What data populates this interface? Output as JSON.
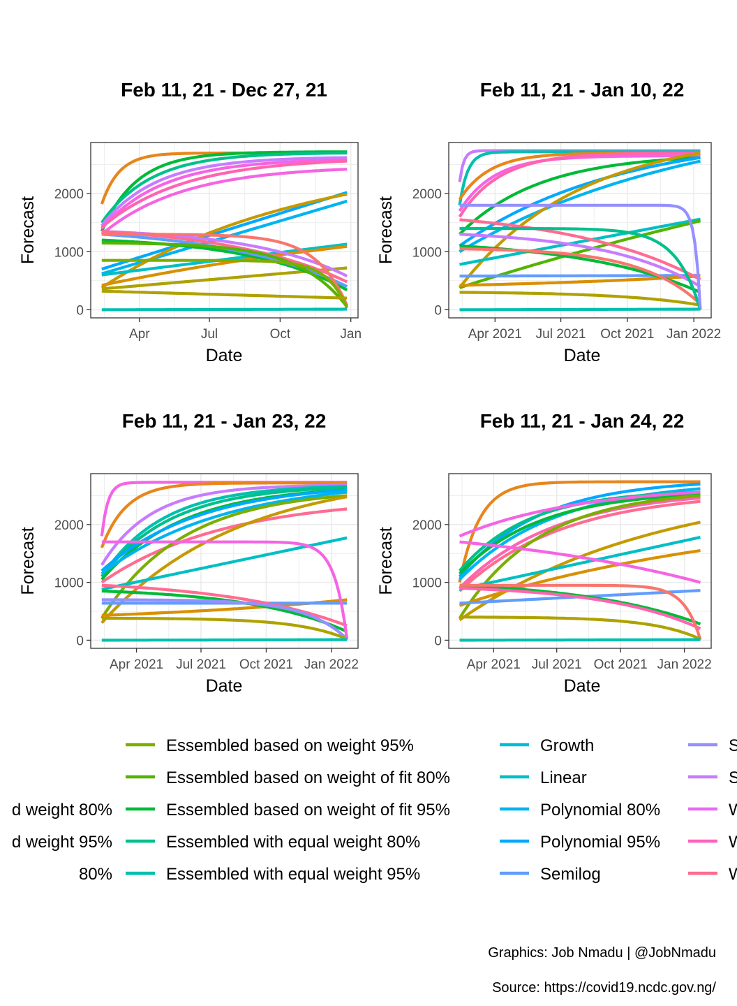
{
  "caption": {
    "graphics": "Graphics: Job Nmadu | @JobNmadu",
    "source": "Source: https://covid19.ncdc.gov.ng/"
  },
  "chart_data": [
    {
      "type": "line",
      "title": "Feb 11, 21 - Dec 27, 21",
      "xlabel": "Date",
      "ylabel": "Forecast",
      "x_range": [
        "2021-02-11",
        "2021-12-27"
      ],
      "x_ticks": [
        [
          "2021-04-01",
          "Apr"
        ],
        [
          "2021-07-01",
          "Jul"
        ],
        [
          "2021-10-01",
          "Oct"
        ],
        [
          "2022-01-01",
          "Jan"
        ]
      ],
      "y_ticks": [
        0,
        1000,
        2000
      ],
      "ylim": [
        -140,
        2880
      ],
      "grid": true,
      "series": [
        {
          "color": "#E7861B",
          "start": 1820,
          "end": 2700,
          "k": 14
        },
        {
          "color": "#00BA38",
          "start": 1350,
          "end": 2720,
          "k": 7
        },
        {
          "color": "#00C08B",
          "start": 1500,
          "end": 2700,
          "k": 5
        },
        {
          "color": "#C77CFF",
          "start": 1450,
          "end": 2620,
          "k": 4.5
        },
        {
          "color": "#F564E3",
          "start": 1400,
          "end": 2580,
          "k": 4
        },
        {
          "color": "#FF64B0",
          "start": 1420,
          "end": 2560,
          "k": 3
        },
        {
          "color": "#F564E3",
          "start": 1300,
          "end": 2420,
          "k": 3
        },
        {
          "color": "#00A9FF",
          "start": 700,
          "end": 2020,
          "k": 0
        },
        {
          "color": "#00B4F0",
          "start": 620,
          "end": 1870,
          "k": 0
        },
        {
          "color": "#C49A00",
          "start": 380,
          "end": 1990,
          "k": 1.2
        },
        {
          "color": "#00BFC4",
          "start": 600,
          "end": 1130,
          "k": 0
        },
        {
          "color": "#D89000",
          "start": 420,
          "end": 1090,
          "k": 0.6
        },
        {
          "color": "#AEA200",
          "start": 360,
          "end": 720,
          "k": 0
        },
        {
          "color": "#C77CFF",
          "start": 1350,
          "end": 580,
          "k": -2.5
        },
        {
          "color": "#00BA38",
          "start": 1200,
          "end": 340,
          "k": -2.5
        },
        {
          "color": "#619CFF",
          "start": 1300,
          "end": 400,
          "k": -2
        },
        {
          "color": "#FF6C91",
          "start": 1350,
          "end": 480,
          "k": -2
        },
        {
          "color": "#F8766D",
          "start": 1300,
          "end": 70,
          "k": -8
        },
        {
          "color": "#53B400",
          "start": 1150,
          "end": 50,
          "k": -5
        },
        {
          "color": "#7CAE00",
          "start": 850,
          "end": 30,
          "k": -12
        },
        {
          "color": "#AEA200",
          "start": 320,
          "end": 200,
          "k": 0
        },
        {
          "color": "#00C0AF",
          "start": 0,
          "end": 10,
          "k": 0
        }
      ]
    },
    {
      "type": "line",
      "title": "Feb 11, 21 - Jan 10, 22",
      "xlabel": "Date",
      "ylabel": "Forecast",
      "x_range": [
        "2021-02-11",
        "2022-01-10"
      ],
      "x_ticks": [
        [
          "2021-04-01",
          "Apr 2021"
        ],
        [
          "2021-07-01",
          "Jul 2021"
        ],
        [
          "2021-10-01",
          "Oct 2021"
        ],
        [
          "2022-01-01",
          "Jan 2022"
        ]
      ],
      "y_ticks": [
        0,
        1000,
        2000
      ],
      "ylim": [
        -140,
        2880
      ],
      "grid": true,
      "series": [
        {
          "color": "#C77CFF",
          "start": 2200,
          "end": 2740,
          "k": 60
        },
        {
          "color": "#00C0AF",
          "start": 1800,
          "end": 2720,
          "k": 30
        },
        {
          "color": "#E7861B",
          "start": 1900,
          "end": 2700,
          "k": 8
        },
        {
          "color": "#F564E3",
          "start": 1700,
          "end": 2650,
          "k": 7
        },
        {
          "color": "#FF64B0",
          "start": 1600,
          "end": 2700,
          "k": 6
        },
        {
          "color": "#00BA38",
          "start": 1300,
          "end": 2620,
          "k": 3
        },
        {
          "color": "#00A9FF",
          "start": 1100,
          "end": 2620,
          "k": 1.5
        },
        {
          "color": "#00B4F0",
          "start": 1000,
          "end": 2560,
          "k": 1
        },
        {
          "color": "#C49A00",
          "start": 380,
          "end": 2700,
          "k": 2
        },
        {
          "color": "#00BFC4",
          "start": 780,
          "end": 1560,
          "k": 0
        },
        {
          "color": "#53B400",
          "start": 380,
          "end": 1530,
          "k": 0.3
        },
        {
          "color": "#619CFF",
          "start": 580,
          "end": 590,
          "k": 0
        },
        {
          "color": "#D89000",
          "start": 420,
          "end": 580,
          "k": -1
        },
        {
          "color": "#FF6C91",
          "start": 1550,
          "end": 520,
          "k": -1.8
        },
        {
          "color": "#C77CFF",
          "start": 1300,
          "end": 400,
          "k": -2.5
        },
        {
          "color": "#00BA38",
          "start": 1100,
          "end": 300,
          "k": -2
        },
        {
          "color": "#F8766D",
          "start": 1050,
          "end": 100,
          "k": -4
        },
        {
          "color": "#AEA200",
          "start": 300,
          "end": 80,
          "k": -3
        },
        {
          "color": "#00C08B",
          "start": 1400,
          "end": 0,
          "k": -10
        },
        {
          "color": "#9590FF",
          "start": 1800,
          "end": 0,
          "k": -45
        },
        {
          "color": "#00C0AF",
          "start": 0,
          "end": 10,
          "k": 0
        }
      ]
    },
    {
      "type": "line",
      "title": "Feb 11, 21 - Jan 23, 22",
      "xlabel": "Date",
      "ylabel": "Forecast",
      "x_range": [
        "2021-02-11",
        "2022-01-23"
      ],
      "x_ticks": [
        [
          "2021-04-01",
          "Apr 2021"
        ],
        [
          "2021-07-01",
          "Jul 2021"
        ],
        [
          "2021-10-01",
          "Oct 2021"
        ],
        [
          "2022-01-01",
          "Jan 2022"
        ]
      ],
      "y_ticks": [
        0,
        1000,
        2000
      ],
      "ylim": [
        -140,
        2880
      ],
      "grid": true,
      "series": [
        {
          "color": "#F564E3",
          "start": 1800,
          "end": 2730,
          "k": 40
        },
        {
          "color": "#E7861B",
          "start": 1600,
          "end": 2720,
          "k": 10
        },
        {
          "color": "#C77CFF",
          "start": 1300,
          "end": 2680,
          "k": 5
        },
        {
          "color": "#00C0AF",
          "start": 1100,
          "end": 2660,
          "k": 4
        },
        {
          "color": "#00C08B",
          "start": 1100,
          "end": 2640,
          "k": 3.5
        },
        {
          "color": "#00BA38",
          "start": 1050,
          "end": 2600,
          "k": 3
        },
        {
          "color": "#00A9FF",
          "start": 1200,
          "end": 2600,
          "k": 2.5
        },
        {
          "color": "#00B4F0",
          "start": 1150,
          "end": 2560,
          "k": 2
        },
        {
          "color": "#FF6C91",
          "start": 1000,
          "end": 2270,
          "k": 2
        },
        {
          "color": "#7CAE00",
          "start": 380,
          "end": 2500,
          "k": 3
        },
        {
          "color": "#C49A00",
          "start": 300,
          "end": 2480,
          "k": 1.8
        },
        {
          "color": "#00BFC4",
          "start": 880,
          "end": 1770,
          "k": 0
        },
        {
          "color": "#D89000",
          "start": 430,
          "end": 700,
          "k": -1
        },
        {
          "color": "#619CFF",
          "start": 640,
          "end": 640,
          "k": 0
        },
        {
          "color": "#FF6C91",
          "start": 950,
          "end": 250,
          "k": -2
        },
        {
          "color": "#00BA38",
          "start": 850,
          "end": 150,
          "k": -2.5
        },
        {
          "color": "#9590FF",
          "start": 700,
          "end": 20,
          "k": -6
        },
        {
          "color": "#AEA200",
          "start": 380,
          "end": 20,
          "k": -5
        },
        {
          "color": "#F564E3",
          "start": 1700,
          "end": 10,
          "k": -20
        },
        {
          "color": "#00C0AF",
          "start": 0,
          "end": 10,
          "k": 0
        }
      ]
    },
    {
      "type": "line",
      "title": "Feb 11, 21 - Jan 24, 22",
      "xlabel": "Date",
      "ylabel": "Forecast",
      "x_range": [
        "2021-02-11",
        "2022-01-24"
      ],
      "x_ticks": [
        [
          "2021-04-01",
          "Apr 2021"
        ],
        [
          "2021-07-01",
          "Jul 2021"
        ],
        [
          "2021-10-01",
          "Oct 2021"
        ],
        [
          "2022-01-01",
          "Jan 2022"
        ]
      ],
      "y_ticks": [
        0,
        1000,
        2000
      ],
      "ylim": [
        -140,
        2880
      ],
      "grid": true,
      "series": [
        {
          "color": "#E7861B",
          "start": 1000,
          "end": 2740,
          "k": 12
        },
        {
          "color": "#00A9FF",
          "start": 1100,
          "end": 2700,
          "k": 3
        },
        {
          "color": "#00B4F0",
          "start": 1050,
          "end": 2620,
          "k": 2.5
        },
        {
          "color": "#00C08B",
          "start": 1200,
          "end": 2560,
          "k": 3.5
        },
        {
          "color": "#00BA38",
          "start": 1150,
          "end": 2520,
          "k": 3
        },
        {
          "color": "#F564E3",
          "start": 1800,
          "end": 2560,
          "k": 2
        },
        {
          "color": "#FF64B0",
          "start": 900,
          "end": 2460,
          "k": 2.5
        },
        {
          "color": "#FF6C91",
          "start": 850,
          "end": 2400,
          "k": 2.3
        },
        {
          "color": "#7CAE00",
          "start": 380,
          "end": 2500,
          "k": 3
        },
        {
          "color": "#C49A00",
          "start": 350,
          "end": 2040,
          "k": 1.2
        },
        {
          "color": "#00BFC4",
          "start": 880,
          "end": 1780,
          "k": 0
        },
        {
          "color": "#D89000",
          "start": 600,
          "end": 1550,
          "k": 0.8
        },
        {
          "color": "#619CFF",
          "start": 640,
          "end": 860,
          "k": 0
        },
        {
          "color": "#F564E3",
          "start": 1700,
          "end": 1000,
          "k": -1
        },
        {
          "color": "#00BA38",
          "start": 950,
          "end": 280,
          "k": -2
        },
        {
          "color": "#FF64B0",
          "start": 900,
          "end": 200,
          "k": -2.5
        },
        {
          "color": "#F8766D",
          "start": 950,
          "end": 10,
          "k": -15
        },
        {
          "color": "#AEA200",
          "start": 400,
          "end": 20,
          "k": -5
        },
        {
          "color": "#00C0AF",
          "start": 0,
          "end": 10,
          "k": 0
        }
      ]
    }
  ],
  "legend": {
    "columns": [
      [
        {
          "label": "d weight 80%",
          "color": "#D89000",
          "row": 2
        },
        {
          "label": "d weight 95%",
          "color": "#C49A00",
          "row": 3
        },
        {
          "label": "80%",
          "color": "#AEA200",
          "row": 4
        }
      ],
      [
        {
          "label": "Essembled based on weight 95%",
          "color": "#7CAE00",
          "row": 0
        },
        {
          "label": "Essembled based on weight of fit 80%",
          "color": "#53B400",
          "row": 1
        },
        {
          "label": "Essembled based on weight of fit 95%",
          "color": "#00BA38",
          "row": 2
        },
        {
          "label": "Essembled with equal weight 80%",
          "color": "#00C08B",
          "row": 3
        },
        {
          "label": "Essembled with equal weight 95%",
          "color": "#00C0AF",
          "row": 4
        }
      ],
      [
        {
          "label": "Growth",
          "color": "#00BCD8",
          "row": 0
        },
        {
          "label": "Linear",
          "color": "#00BFC4",
          "row": 1
        },
        {
          "label": "Polynomial 80%",
          "color": "#00B4F0",
          "row": 2
        },
        {
          "label": "Polynomial 95%",
          "color": "#00A9FF",
          "row": 3
        },
        {
          "label": "Semilog",
          "color": "#619CFF",
          "row": 4
        }
      ],
      [
        {
          "label": "S",
          "color": "#9590FF",
          "row": 0
        },
        {
          "label": "S",
          "color": "#C77CFF",
          "row": 1
        },
        {
          "label": "W",
          "color": "#E76BF3",
          "row": 2
        },
        {
          "label": "W",
          "color": "#FF62BC",
          "row": 3
        },
        {
          "label": "W",
          "color": "#FF6C91",
          "row": 4
        }
      ]
    ]
  }
}
